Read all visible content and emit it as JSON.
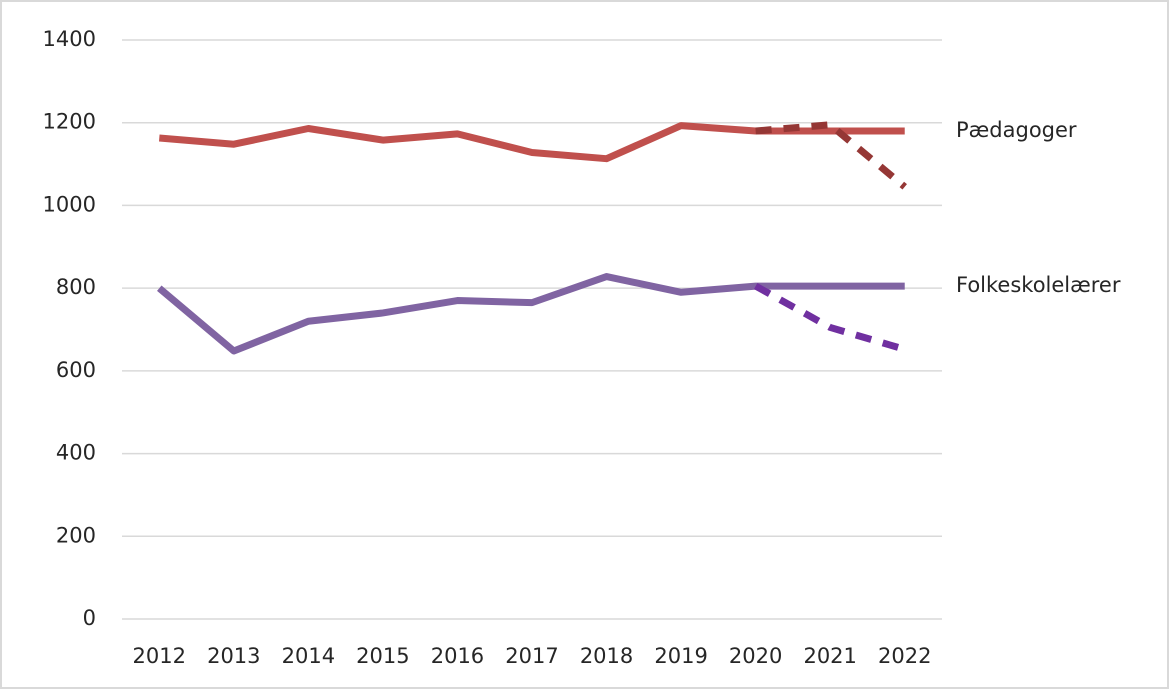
{
  "chart_data": {
    "type": "line",
    "categories": [
      "2012",
      "2013",
      "2014",
      "2015",
      "2016",
      "2017",
      "2018",
      "2019",
      "2020",
      "2021",
      "2022"
    ],
    "series": [
      {
        "name": "Pædagoger",
        "color": "#c0504d",
        "values": [
          1163,
          1148,
          1186,
          1158,
          1173,
          1128,
          1113,
          1193,
          1180,
          1180,
          1180
        ]
      },
      {
        "color": "#953735",
        "dash": true,
        "values": [
          null,
          null,
          null,
          null,
          null,
          null,
          null,
          null,
          1180,
          1195,
          1045
        ]
      },
      {
        "name": "Folkeskolelærer",
        "color": "#8064a2",
        "values": [
          800,
          648,
          720,
          740,
          770,
          765,
          828,
          790,
          805,
          805,
          805
        ]
      },
      {
        "color": "#7030a0",
        "dash": true,
        "values": [
          null,
          null,
          null,
          null,
          null,
          null,
          null,
          null,
          805,
          705,
          652
        ]
      }
    ],
    "ylim": [
      0,
      1400
    ],
    "yticks": [
      0,
      200,
      400,
      600,
      800,
      1000,
      1200,
      1400
    ],
    "grid": true
  }
}
